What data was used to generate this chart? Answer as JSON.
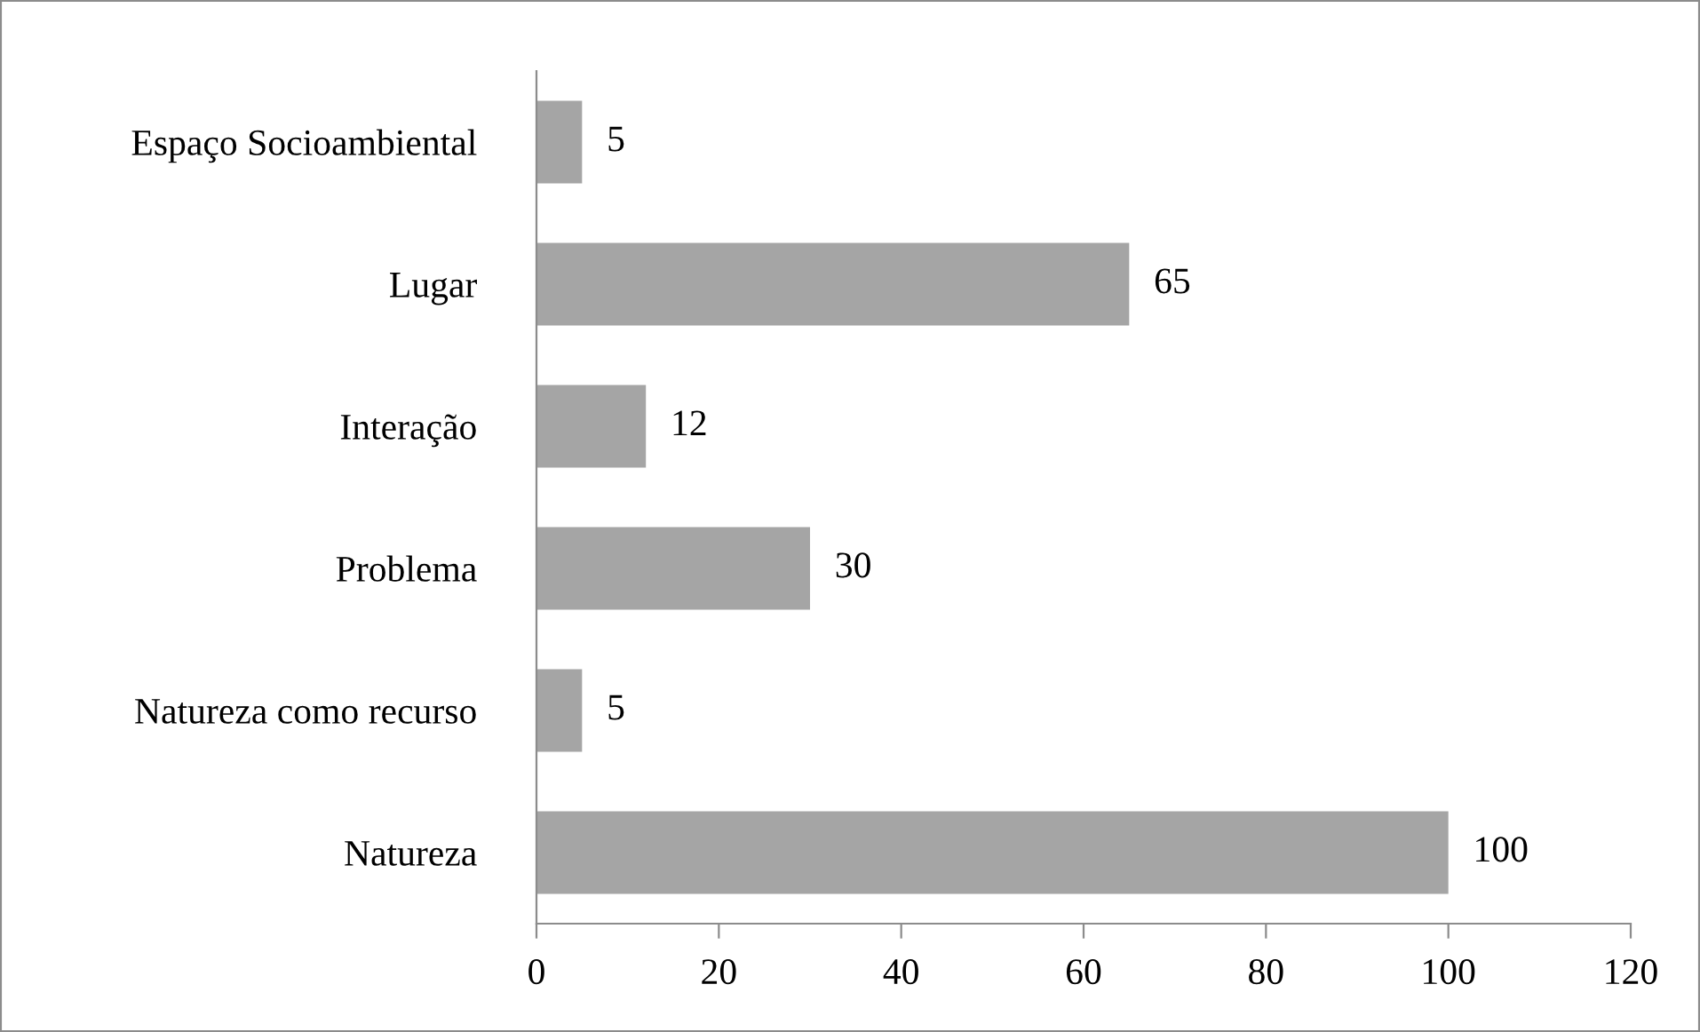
{
  "chart_data": {
    "type": "bar",
    "orientation": "horizontal",
    "categories": [
      "Espaço Socioambiental",
      "Lugar",
      "Interação",
      "Problema",
      "Natureza como recurso",
      "Natureza"
    ],
    "values": [
      5,
      65,
      12,
      30,
      5,
      100
    ],
    "color": "#a5a5a5",
    "xlim": [
      0,
      120
    ],
    "xticks": [
      0,
      20,
      40,
      60,
      80,
      100,
      120
    ],
    "data_labels": true,
    "grid": false
  }
}
